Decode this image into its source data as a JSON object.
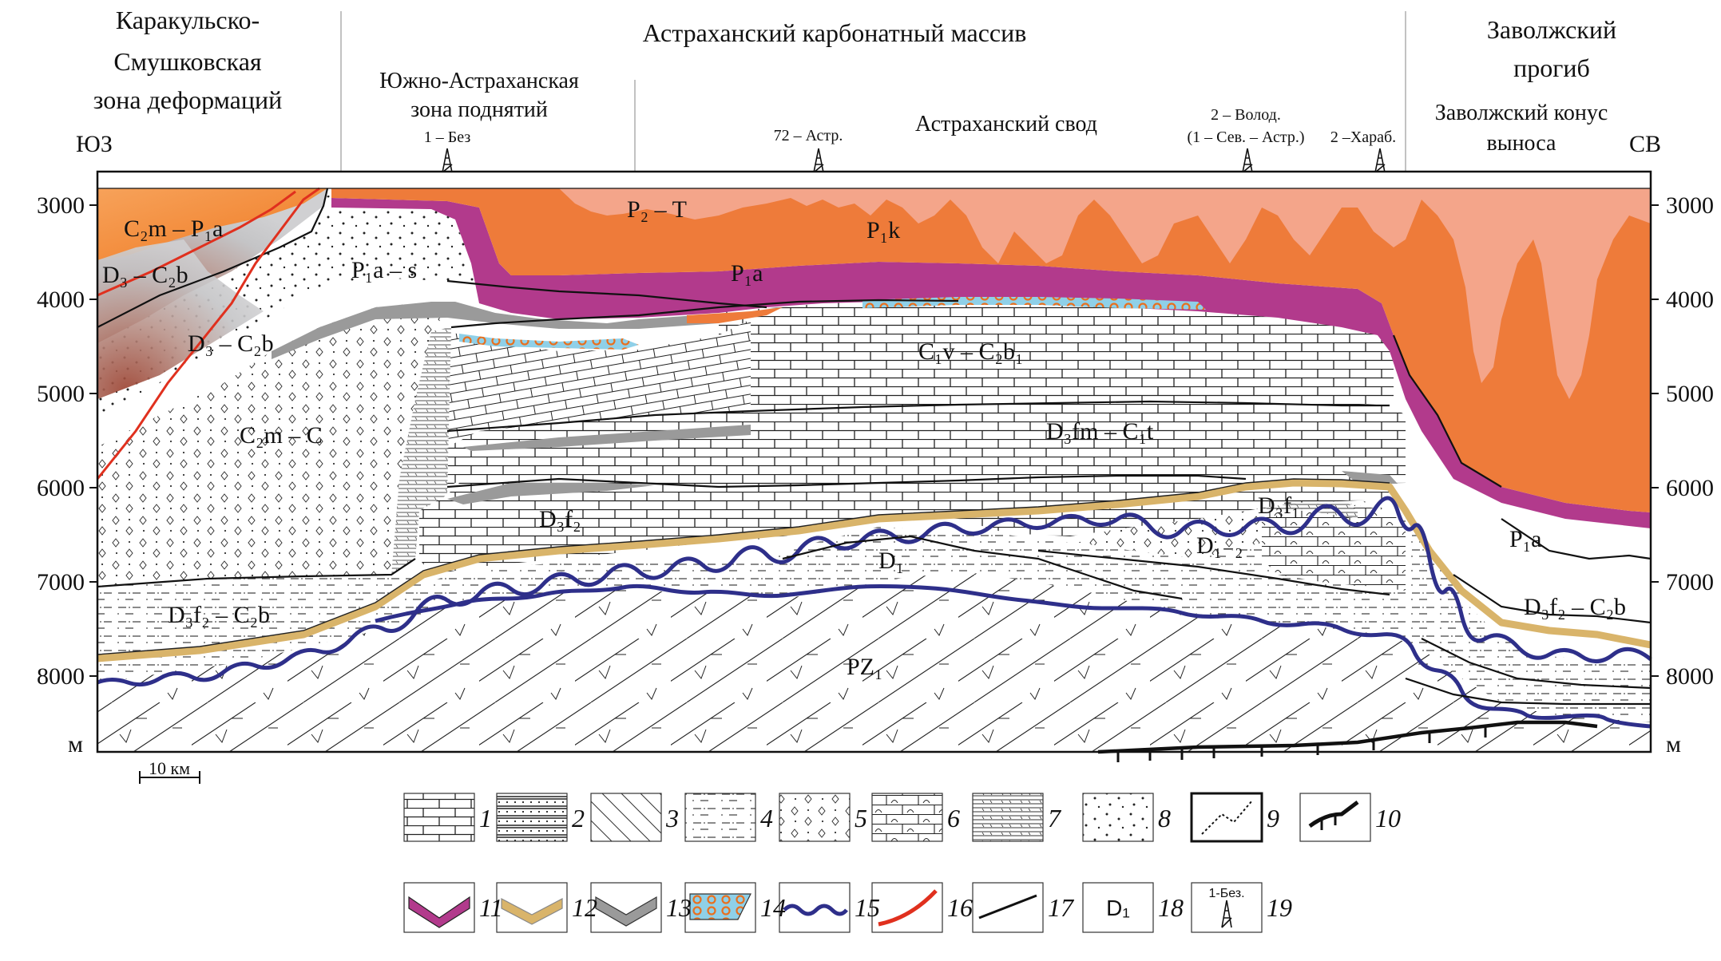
{
  "header": {
    "left_zone": [
      "Каракульско-",
      "Смушковская",
      "зона деформаций"
    ],
    "middle_zone": "Астраханский карбонатный массив",
    "right_zone": [
      "Заволжский",
      "прогиб"
    ],
    "sub_south": [
      "Южно-Астраханская",
      "зона поднятий"
    ],
    "sub_arch": "Астраханский свод",
    "sub_cone": [
      "Заволжский конус",
      "выноса"
    ],
    "dir_left": "ЮЗ",
    "dir_right": "СВ"
  },
  "wells": [
    {
      "label": [
        "1 – Без"
      ]
    },
    {
      "label": [
        "72 – Астр."
      ]
    },
    {
      "label": [
        "2 – Волод.",
        "(1 – Сев. – Астр.)"
      ]
    },
    {
      "label": [
        "2 –Хараб."
      ]
    }
  ],
  "depth_axis": {
    "ticks": [
      "3000",
      "4000",
      "5000",
      "6000",
      "7000",
      "8000"
    ],
    "unit": "м"
  },
  "scale_bar": "10 км",
  "units": {
    "c2m_p1a": "C₂m – P₁a",
    "d3_c2b_a": "D₃ – C₂b",
    "d3_c2b_b": "D₃ – C₂b",
    "p1a_s": "P₁a – s",
    "c2m_c": "C₂m – C",
    "d3f2_c2b_left": "D₃f₂ – C₂b",
    "p2_t": "P₂ – T",
    "p1k": "P₁k",
    "p1a_mid": "P₁a",
    "c1v_c2b1": "C₁v – C₂b₁",
    "d3fm_c1t": "D₃fm – C₁t",
    "d3f2": "D₃f₂",
    "d3f1": "D₃f₁",
    "d1_2": "D₁₋₂",
    "d1": "D₁",
    "pz1": "PZ₁",
    "p1a_right": "P₁a",
    "d3f2_c2b_right": "D₃f₂ – C₂b"
  },
  "legend": {
    "row1": [
      "1",
      "2",
      "3",
      "4",
      "5",
      "6",
      "7",
      "8",
      "9",
      "10"
    ],
    "row2": [
      "11",
      "12",
      "13",
      "14",
      "15",
      "16",
      "17",
      "18",
      "19"
    ],
    "swatch18_text": "D₁",
    "swatch19_text": "1-Без."
  },
  "colors": {
    "p1k_orange": "#ee7b3a",
    "p2t_salmon": "#f4a58a",
    "magenta_layer": "#b23a8c",
    "tan_layer": "#d9b46a",
    "grey_layer": "#9a9a9a",
    "blue_wave": "#2e2f8a",
    "red_fault": "#e0301e"
  }
}
